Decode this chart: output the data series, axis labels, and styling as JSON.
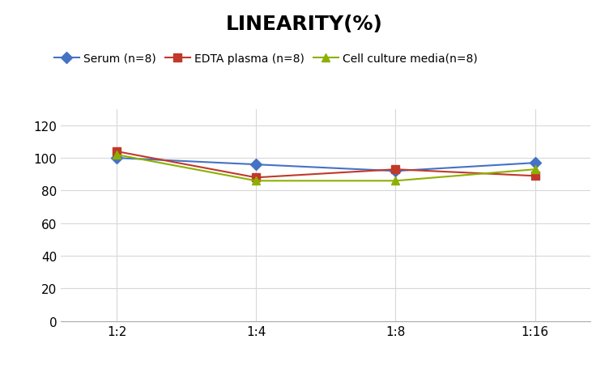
{
  "title": "LINEARITY(%)",
  "x_labels": [
    "1:2",
    "1:4",
    "1:8",
    "1:16"
  ],
  "x_positions": [
    0,
    1,
    2,
    3
  ],
  "series": [
    {
      "name": "Serum (n=8)",
      "values": [
        100,
        96,
        92,
        97
      ],
      "color": "#4472C4",
      "marker": "D",
      "linewidth": 1.5
    },
    {
      "name": "EDTA plasma (n=8)",
      "values": [
        104,
        88,
        93,
        89
      ],
      "color": "#C0392B",
      "marker": "s",
      "linewidth": 1.5
    },
    {
      "name": "Cell culture media(n=8)",
      "values": [
        102,
        86,
        86,
        93
      ],
      "color": "#8DB000",
      "marker": "^",
      "linewidth": 1.5
    }
  ],
  "ylim": [
    0,
    130
  ],
  "yticks": [
    0,
    20,
    40,
    60,
    80,
    100,
    120
  ],
  "background_color": "#FFFFFF",
  "title_fontsize": 18,
  "legend_fontsize": 10,
  "tick_fontsize": 11,
  "grid_color": "#D8D8D8"
}
